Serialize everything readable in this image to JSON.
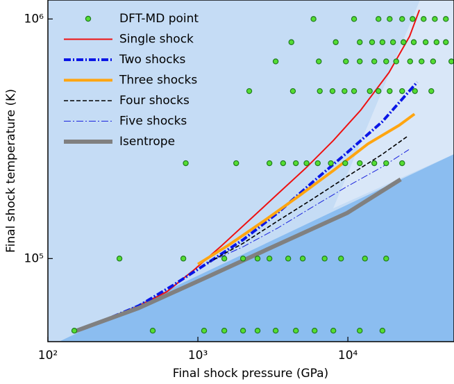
{
  "chart_data": {
    "type": "line",
    "xlabel": "Final shock pressure (GPa)",
    "ylabel": "Final shock temperature (K)",
    "xscale": "log",
    "yscale": "log",
    "xlim": [
      100,
      51000
    ],
    "ylim": [
      45000,
      1200000
    ],
    "xticks": [
      {
        "value": 100,
        "label": "10²"
      },
      {
        "value": 1000,
        "label": "10³"
      },
      {
        "value": 10000,
        "label": "10⁴"
      }
    ],
    "yticks": [
      {
        "value": 100000,
        "label": "10⁵"
      },
      {
        "value": 1000000,
        "label": "10⁶"
      }
    ],
    "legend": "upper left",
    "series": [
      {
        "name": "DFT-MD point",
        "type": "scatter",
        "color": "#55dd33",
        "x": [
          150,
          500,
          1100,
          1500,
          2000,
          2500,
          3300,
          4500,
          6000,
          8000,
          12000,
          17000,
          300,
          800,
          1500,
          2000,
          2500,
          3000,
          4000,
          5000,
          7000,
          9000,
          13000,
          18000,
          830,
          1800,
          3000,
          3700,
          4500,
          5300,
          6300,
          7700,
          9600,
          12000,
          15000,
          18000,
          23000,
          2200,
          4300,
          6500,
          7900,
          9500,
          11000,
          14000,
          16000,
          19000,
          23000,
          28000,
          36000,
          3300,
          6400,
          9700,
          12000,
          15000,
          18000,
          21000,
          26000,
          31000,
          37000,
          49000,
          4200,
          8300,
          12000,
          14500,
          17000,
          20000,
          23500,
          27500,
          33000,
          39000,
          45000,
          5900,
          11000,
          16000,
          19000,
          23000,
          27000,
          32000,
          38000,
          45000
        ],
        "values": [
          50000,
          50000,
          50000,
          50000,
          50000,
          50000,
          50000,
          50000,
          50000,
          50000,
          50000,
          50000,
          100000,
          100000,
          100000,
          100000,
          100000,
          100000,
          100000,
          100000,
          100000,
          100000,
          100000,
          100000,
          250000,
          250000,
          250000,
          250000,
          250000,
          250000,
          250000,
          250000,
          250000,
          250000,
          250000,
          250000,
          250000,
          500000,
          500000,
          500000,
          500000,
          500000,
          500000,
          500000,
          500000,
          500000,
          500000,
          500000,
          500000,
          665000,
          665000,
          665000,
          665000,
          665000,
          665000,
          665000,
          665000,
          665000,
          665000,
          665000,
          800000,
          800000,
          800000,
          800000,
          800000,
          800000,
          800000,
          800000,
          800000,
          800000,
          800000,
          1000000,
          1000000,
          1000000,
          1000000,
          1000000,
          1000000,
          1000000,
          1000000,
          1000000
        ]
      },
      {
        "name": "Single shock",
        "color": "#ee1111",
        "linestyle": "solid",
        "linewidth": 2,
        "x": [
          230,
          404,
          619,
          948,
          1450,
          2220,
          3400,
          5220,
          8000,
          12200,
          18800,
          25800,
          30000
        ],
        "values": [
          54800,
          63500,
          72600,
          90000,
          113600,
          145300,
          186000,
          238000,
          311000,
          417000,
          598000,
          847000,
          1091000
        ]
      },
      {
        "name": "Two shocks",
        "color": "#0a16e6",
        "linestyle": "dashdot",
        "linewidth": 4,
        "x": [
          225,
          404,
          689,
          1170,
          2000,
          3400,
          5800,
          9890,
          16900,
          29000
        ],
        "values": [
          54500,
          63500,
          77600,
          96100,
          119800,
          155000,
          208000,
          277000,
          372000,
          545000
        ]
      },
      {
        "name": "Three shocks",
        "color": "#ffa510",
        "linestyle": "solid",
        "linewidth": 4,
        "x": [
          1000,
          1620,
          2750,
          4690,
          8000,
          13600,
          22000,
          27800
        ],
        "values": [
          94800,
          114300,
          143400,
          182000,
          233000,
          301000,
          360000,
          401000
        ]
      },
      {
        "name": "Four shocks",
        "color": "#000000",
        "linestyle": "dashed",
        "linewidth": 1.6,
        "x": [
          1170,
          2000,
          3400,
          5800,
          9890,
          16900,
          25000
        ],
        "values": [
          96100,
          115800,
          143400,
          177000,
          220000,
          272000,
          324000
        ]
      },
      {
        "name": "Five shocks",
        "color": "#1a22dd",
        "linestyle": "dashdot",
        "linewidth": 1,
        "x": [
          1170,
          2000,
          3400,
          5800,
          9890,
          16900,
          25500
        ],
        "values": [
          96100,
          112000,
          134000,
          164000,
          200000,
          241000,
          285000
        ]
      },
      {
        "name": "Isentrope",
        "color": "#808080",
        "linestyle": "solid",
        "linewidth": 6,
        "x": [
          150,
          404,
          1170,
          3400,
          9890,
          22500
        ],
        "values": [
          49600,
          62200,
          84100,
          114300,
          155000,
          214000
        ]
      }
    ]
  }
}
